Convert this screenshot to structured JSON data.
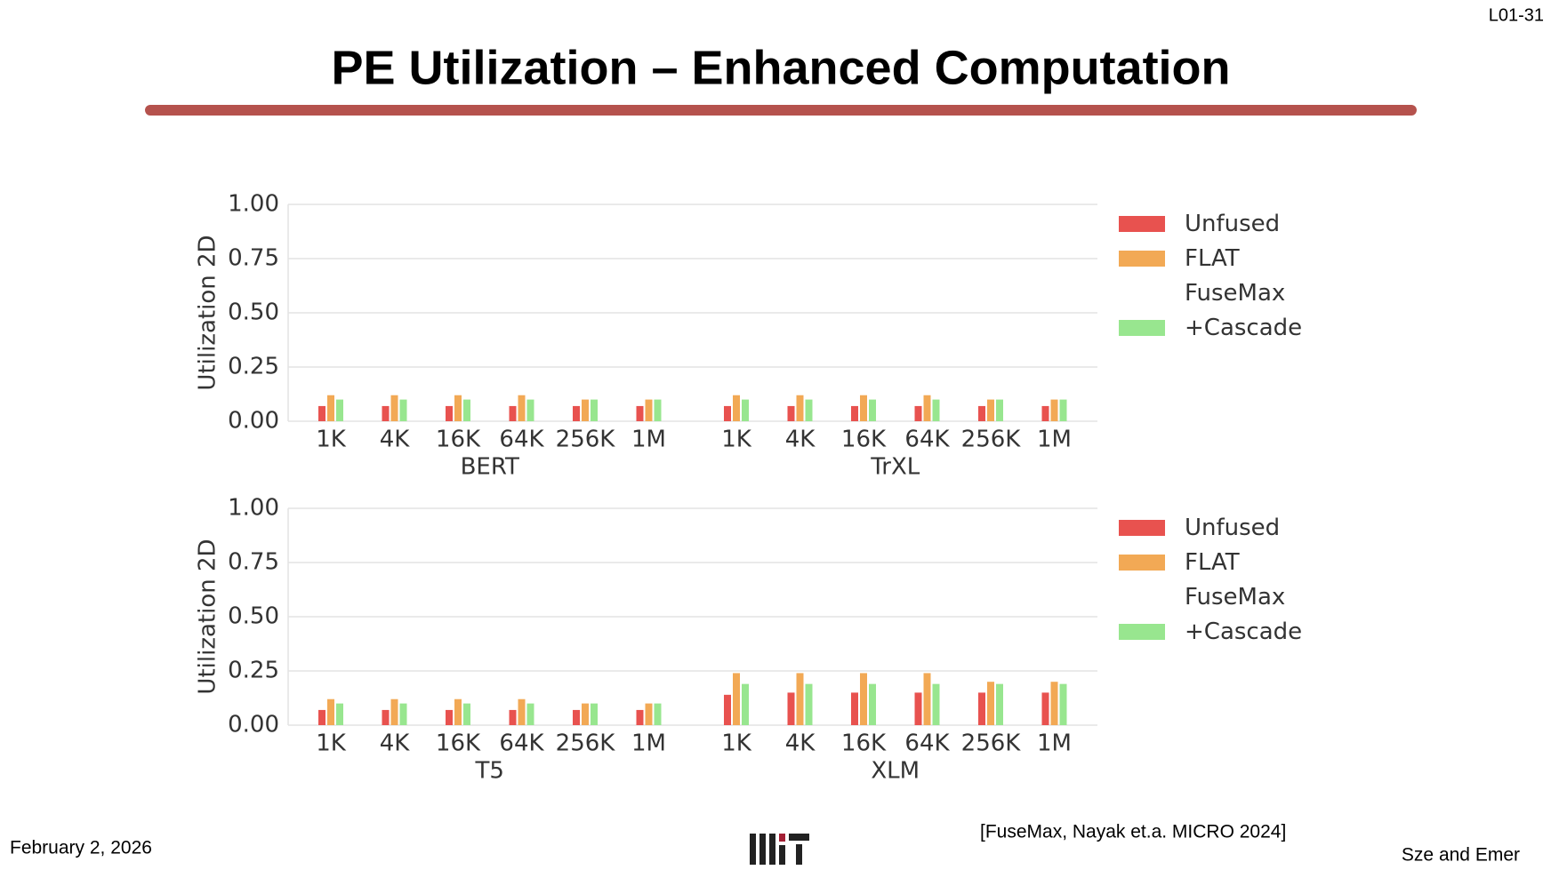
{
  "slide": {
    "title": "PE Utilization – Enhanced Computation",
    "number": "L01-31",
    "date": "February 2, 2026",
    "citation": "[FuseMax, Nayak et.a. MICRO 2024]",
    "authors": "Sze and Emer"
  },
  "chart_data": [
    {
      "type": "bar",
      "y_label": "Utilization 2D",
      "categories": [
        "1K",
        "4K",
        "16K",
        "64K",
        "256K",
        "1M",
        "1K",
        "4K",
        "16K",
        "64K",
        "256K",
        "1M"
      ],
      "group_labels": [
        "BERT",
        "TrXL"
      ],
      "series": [
        {
          "name": "Unfused",
          "color": "#e8524f",
          "values": [
            0.07,
            0.07,
            0.07,
            0.07,
            0.07,
            0.07,
            0.07,
            0.07,
            0.07,
            0.07,
            0.07,
            0.07
          ]
        },
        {
          "name": "FLAT",
          "color": "#f2a955",
          "values": [
            0.12,
            0.12,
            0.12,
            0.12,
            0.1,
            0.1,
            0.12,
            0.12,
            0.12,
            0.12,
            0.1,
            0.1
          ]
        },
        {
          "name": "FuseMax\n+Cascade",
          "color": "#98e68f",
          "values": [
            0.1,
            0.1,
            0.1,
            0.1,
            0.1,
            0.1,
            0.1,
            0.1,
            0.1,
            0.1,
            0.1,
            0.1
          ]
        }
      ],
      "ylim": [
        0,
        1
      ],
      "yticks": [
        {
          "value": 0,
          "label": "0.00"
        },
        0.25,
        {
          "value": 0.5,
          "label": "0.50"
        },
        0.75,
        {
          "value": 1,
          "label": "1.00"
        }
      ],
      "grid": true,
      "legend": "right"
    },
    {
      "type": "bar",
      "y_label": "Utilization 2D",
      "categories": [
        "1K",
        "4K",
        "16K",
        "64K",
        "256K",
        "1M",
        "1K",
        "4K",
        "16K",
        "64K",
        "256K",
        "1M"
      ],
      "group_labels": [
        "T5",
        "XLM"
      ],
      "series": [
        {
          "name": "Unfused",
          "color": "#e8524f",
          "values": [
            0.07,
            0.07,
            0.07,
            0.07,
            0.07,
            0.07,
            0.14,
            0.15,
            0.15,
            0.15,
            0.15,
            0.15
          ]
        },
        {
          "name": "FLAT",
          "color": "#f2a955",
          "values": [
            0.12,
            0.12,
            0.12,
            0.12,
            0.1,
            0.1,
            0.24,
            0.24,
            0.24,
            0.24,
            0.2,
            0.2
          ]
        },
        {
          "name": "FuseMax\n+Cascade",
          "color": "#98e68f",
          "values": [
            0.1,
            0.1,
            0.1,
            0.1,
            0.1,
            0.1,
            0.19,
            0.19,
            0.19,
            0.19,
            0.19,
            0.19
          ]
        }
      ],
      "ylim": [
        0,
        1
      ],
      "yticks": [
        {
          "value": 0,
          "label": "0.00"
        },
        0.25,
        {
          "value": 0.5,
          "label": "0.50"
        },
        0.75,
        {
          "value": 1,
          "label": "1.00"
        }
      ],
      "grid": true,
      "legend": "right"
    }
  ]
}
